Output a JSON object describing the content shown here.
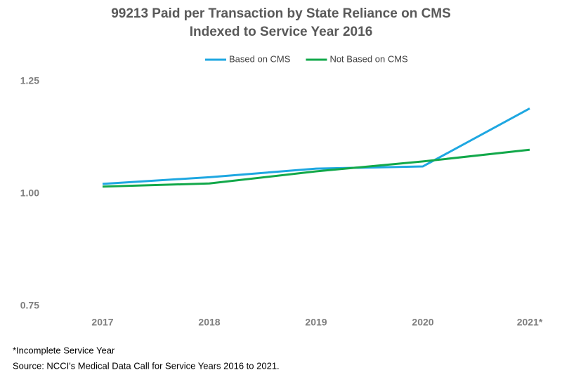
{
  "chart_data": {
    "type": "line",
    "title": "99213 Paid per Transaction by State Reliance on CMS",
    "subtitle": "Indexed to Service Year 2016",
    "categories": [
      "2017",
      "2018",
      "2019",
      "2020",
      "2021*"
    ],
    "series": [
      {
        "name": "Based on CMS",
        "color": "#1ea7e1",
        "values": [
          1.022,
          1.037,
          1.056,
          1.061,
          1.19
        ]
      },
      {
        "name": "Not Based on CMS",
        "color": "#12a84a",
        "values": [
          1.016,
          1.023,
          1.05,
          1.072,
          1.098
        ]
      }
    ],
    "ylim": [
      0.75,
      1.25
    ],
    "yticks": [
      {
        "value": 0.75,
        "label": "0.75"
      },
      {
        "value": 1,
        "label": "1.00"
      },
      {
        "value": 1.25,
        "label": "1.25"
      }
    ],
    "grid": false,
    "legend": "top",
    "notes": [
      "*Incomplete Service Year",
      "Source: NCCI's Medical Data Call for Service Years 2016 to 2021."
    ]
  }
}
